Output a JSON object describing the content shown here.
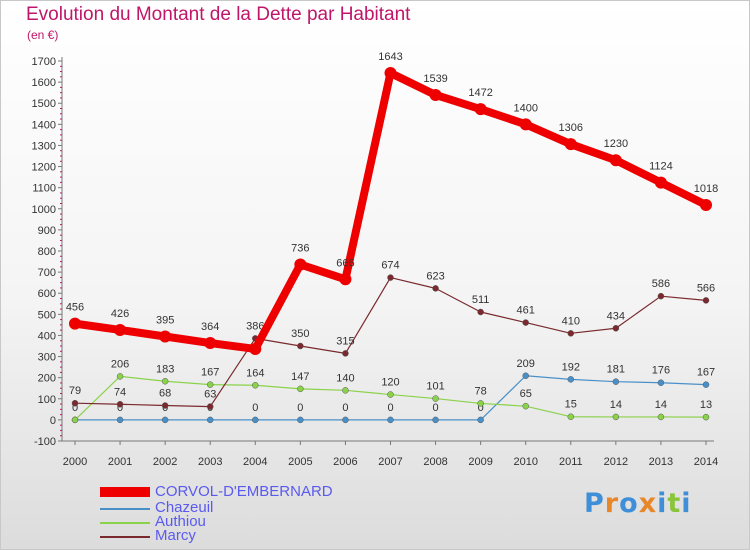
{
  "header": {
    "title": "Evolution du Montant de la Dette par Habitant",
    "unit": "(en €)"
  },
  "chart_data": {
    "type": "line",
    "x": [
      2000,
      2001,
      2002,
      2003,
      2004,
      2005,
      2006,
      2007,
      2008,
      2009,
      2010,
      2011,
      2012,
      2013,
      2014
    ],
    "ylim": [
      -100,
      1700
    ],
    "yticks": [
      -100,
      0,
      100,
      200,
      300,
      400,
      500,
      600,
      700,
      800,
      900,
      1000,
      1100,
      1200,
      1300,
      1400,
      1500,
      1600,
      1700
    ],
    "grid": false,
    "legend_position": "bottom-left",
    "series": [
      {
        "name": "Chazeuil",
        "color": "#4a90c8",
        "values": [
          0,
          0,
          0,
          0,
          0,
          0,
          0,
          0,
          0,
          0,
          209,
          192,
          181,
          176,
          167
        ],
        "labels": [
          "0",
          "0",
          "0",
          "0",
          "0",
          "0",
          "0",
          "0",
          "0",
          "0",
          "209",
          "192",
          "181",
          "176",
          "167"
        ]
      },
      {
        "name": "Authiou",
        "color": "#8ad24a",
        "values": [
          0,
          206,
          183,
          167,
          164,
          147,
          140,
          120,
          101,
          78,
          65,
          15,
          14,
          14,
          13
        ],
        "labels": [
          "",
          "206",
          "183",
          "167",
          "164",
          "147",
          "140",
          "120",
          "101",
          "78",
          "65",
          "15",
          "14",
          "14",
          "13"
        ]
      },
      {
        "name": "Marcy",
        "color": "#7a2a2e",
        "values": [
          79,
          74,
          68,
          63,
          386,
          350,
          315,
          674,
          623,
          511,
          461,
          410,
          434,
          586,
          566
        ],
        "labels": [
          "79",
          "74",
          "68",
          "63",
          "386",
          "350",
          "315",
          "674",
          "623",
          "511",
          "461",
          "410",
          "434",
          "586",
          "566"
        ]
      },
      {
        "name": "CORVOL-D'EMBERNARD",
        "color": "#ee0000",
        "values": [
          456,
          426,
          395,
          364,
          336,
          736,
          666,
          1643,
          1539,
          1472,
          1400,
          1306,
          1230,
          1124,
          1018
        ],
        "labels": [
          "456",
          "426",
          "395",
          "364",
          "",
          "736",
          "666",
          "1643",
          "1539",
          "1472",
          "1400",
          "1306",
          "1230",
          "1124",
          "1018"
        ]
      }
    ]
  },
  "legend": {
    "items": [
      {
        "name": "CORVOL-D'EMBERNARD",
        "color": "#ee0000",
        "label_color": "#5a5af0"
      },
      {
        "name": "Chazeuil",
        "color": "#4a90c8",
        "label_color": "#5a5af0"
      },
      {
        "name": "Authiou",
        "color": "#8ad24a",
        "label_color": "#5a5af0"
      },
      {
        "name": "Marcy",
        "color": "#7a2a2e",
        "label_color": "#5a5af0"
      }
    ]
  },
  "logo": {
    "text": "Proxiti",
    "letter_colors": [
      "#3f8fd8",
      "#e8872a",
      "#3f8fd8",
      "#e8872a",
      "#3f8fd8",
      "#8ac43a",
      "#3f8fd8"
    ]
  }
}
